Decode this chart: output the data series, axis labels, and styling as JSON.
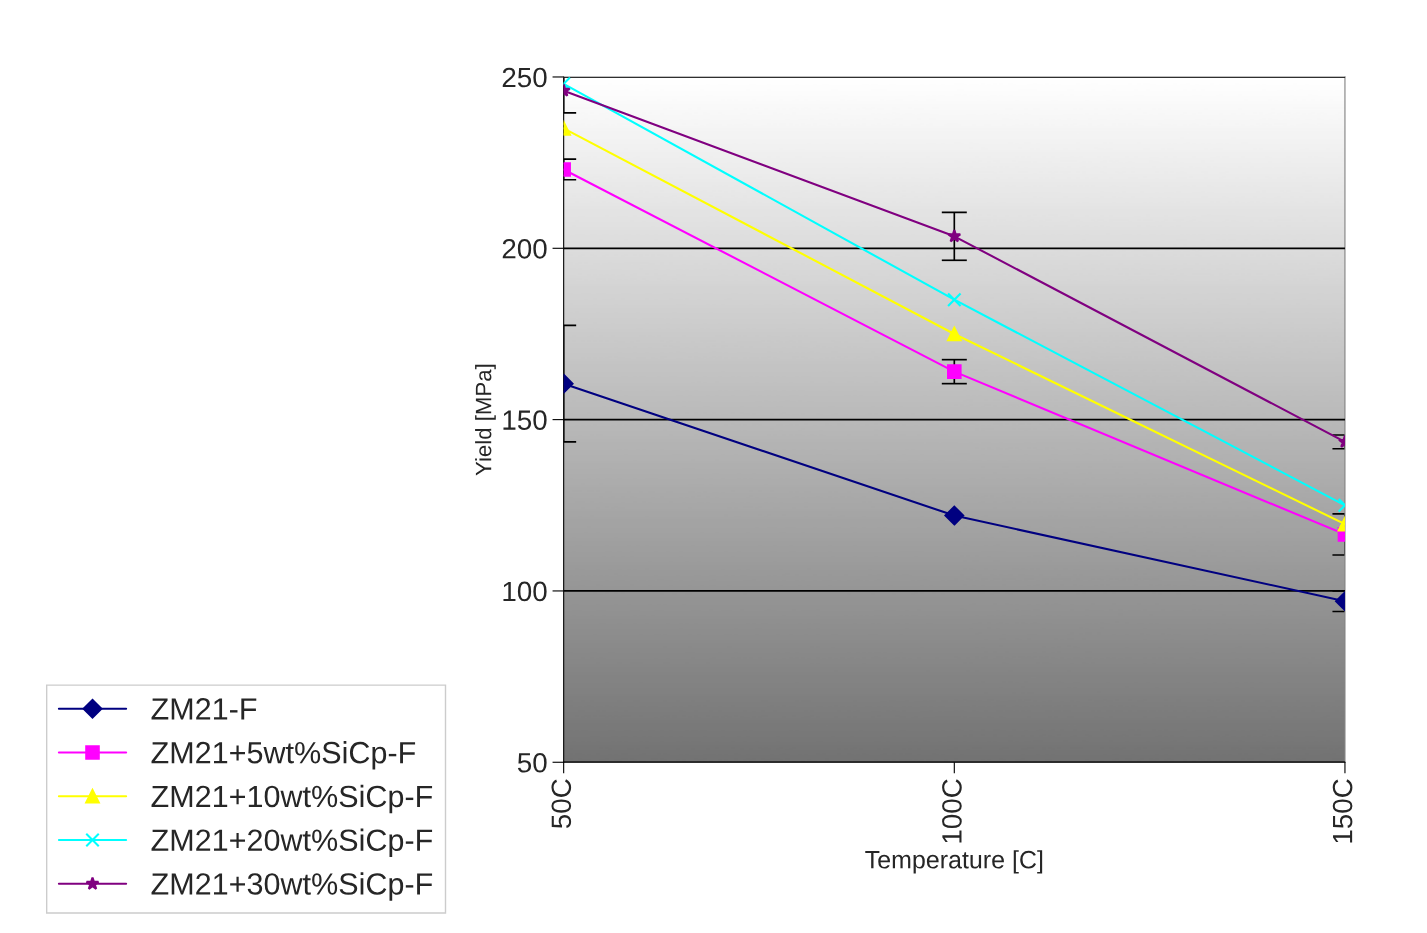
{
  "chart_data": {
    "type": "line",
    "xlabel": "Temperature [C]",
    "ylabel": "Yield [MPa]",
    "categories": [
      "50C",
      "100C",
      "150C"
    ],
    "ylim": [
      50,
      250
    ],
    "yticks": [
      50,
      100,
      150,
      200,
      250
    ],
    "grid": "y",
    "legend": "bottom left",
    "series": [
      {
        "name": "ZM21-F",
        "color": "#000080",
        "marker": "diamond",
        "values": [
          160.5,
          122,
          97
        ],
        "errors": [
          17,
          null,
          3
        ]
      },
      {
        "name": "ZM21+5wt%SiCp-F",
        "color": "#ff00ff",
        "marker": "square",
        "values": [
          223,
          164,
          116.5
        ],
        "errors": [
          3,
          3.5,
          6
        ]
      },
      {
        "name": "ZM21+10wt%SiCp-F",
        "color": "#ffff00",
        "marker": "triangle",
        "values": [
          235,
          175,
          119.5
        ],
        "errors": [
          null,
          null,
          null
        ]
      },
      {
        "name": "ZM21+20wt%SiCp-F",
        "color": "#00ffff",
        "marker": "cross",
        "values": [
          248,
          185,
          125
        ],
        "errors": [
          null,
          null,
          null
        ]
      },
      {
        "name": "ZM21+30wt%SiCp-F",
        "color": "#800080",
        "marker": "star",
        "values": [
          246,
          203.5,
          143.5
        ],
        "errors": [
          6.5,
          7,
          2
        ]
      }
    ]
  }
}
